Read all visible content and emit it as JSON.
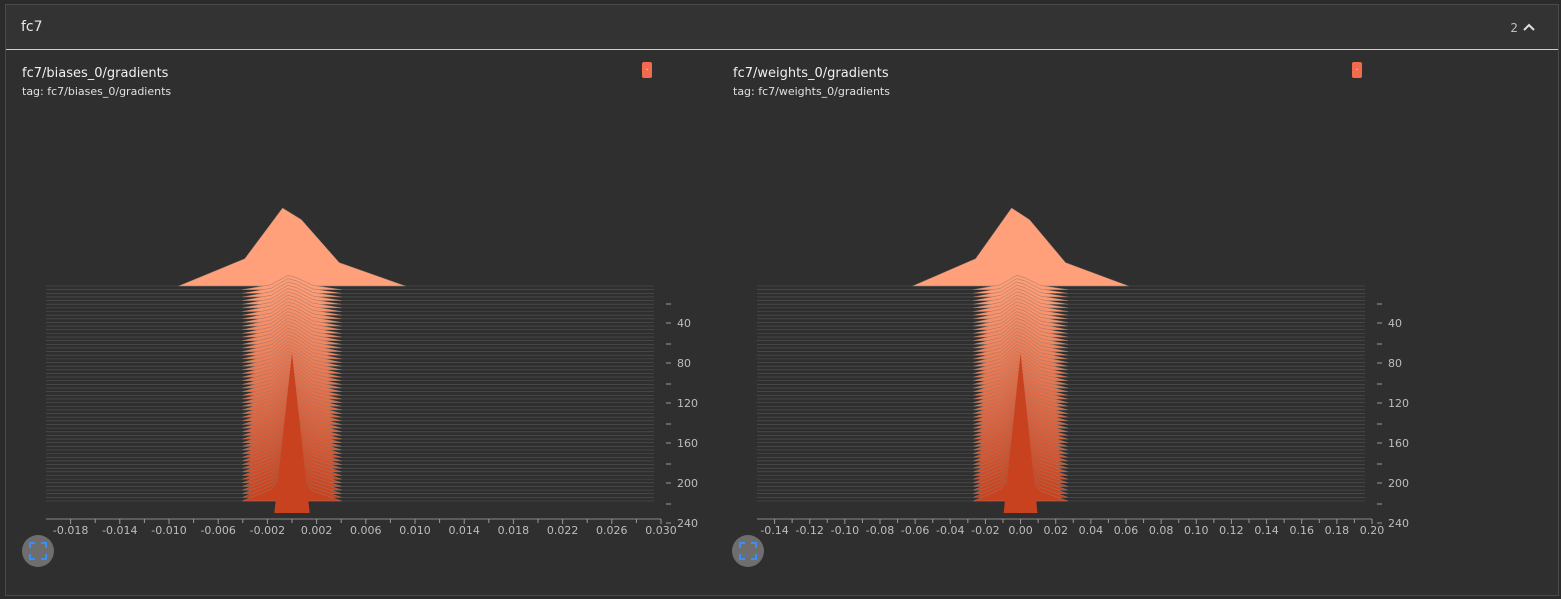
{
  "group": {
    "title": "fc7",
    "count": "2",
    "collapse_icon": "chevron-up-icon"
  },
  "cards": [
    {
      "title": "fc7/biases_0/gradients",
      "tag": "tag: fc7/biases_0/gradients",
      "run_chip_label": ".",
      "run_color": "#f26b4e",
      "expand_icon": "fullscreen-icon"
    },
    {
      "title": "fc7/weights_0/gradients",
      "tag": "tag: fc7/weights_0/gradients",
      "run_chip_label": ".",
      "run_color": "#f26b4e",
      "expand_icon": "fullscreen-icon"
    }
  ],
  "chart_data": [
    {
      "type": "histogram-offset",
      "x_ticks": [
        "-0.018",
        "-0.014",
        "-0.010",
        "-0.006",
        "-0.002",
        "0.002",
        "0.006",
        "0.010",
        "0.014",
        "0.018",
        "0.022",
        "0.026",
        "0.030"
      ],
      "xlim": [
        -0.02,
        0.03
      ],
      "y_ticks": [
        "40",
        "80",
        "120",
        "160",
        "200",
        "240"
      ],
      "ylim": [
        0,
        240
      ],
      "peak_x": 0.0,
      "spread": 0.0012,
      "front_color": "#c8421f",
      "back_color": "#ffa07a"
    },
    {
      "type": "histogram-offset",
      "x_ticks": [
        "-0.14",
        "-0.12",
        "-0.10",
        "-0.08",
        "-0.06",
        "-0.04",
        "-0.02",
        "0.00",
        "0.02",
        "0.04",
        "0.06",
        "0.08",
        "0.10",
        "0.12",
        "0.14",
        "0.16",
        "0.18",
        "0.20"
      ],
      "xlim": [
        -0.15,
        0.2
      ],
      "y_ticks": [
        "40",
        "80",
        "120",
        "160",
        "200",
        "240"
      ],
      "ylim": [
        0,
        240
      ],
      "peak_x": 0.0,
      "spread": 0.008,
      "front_color": "#c8421f",
      "back_color": "#ffa07a"
    }
  ]
}
